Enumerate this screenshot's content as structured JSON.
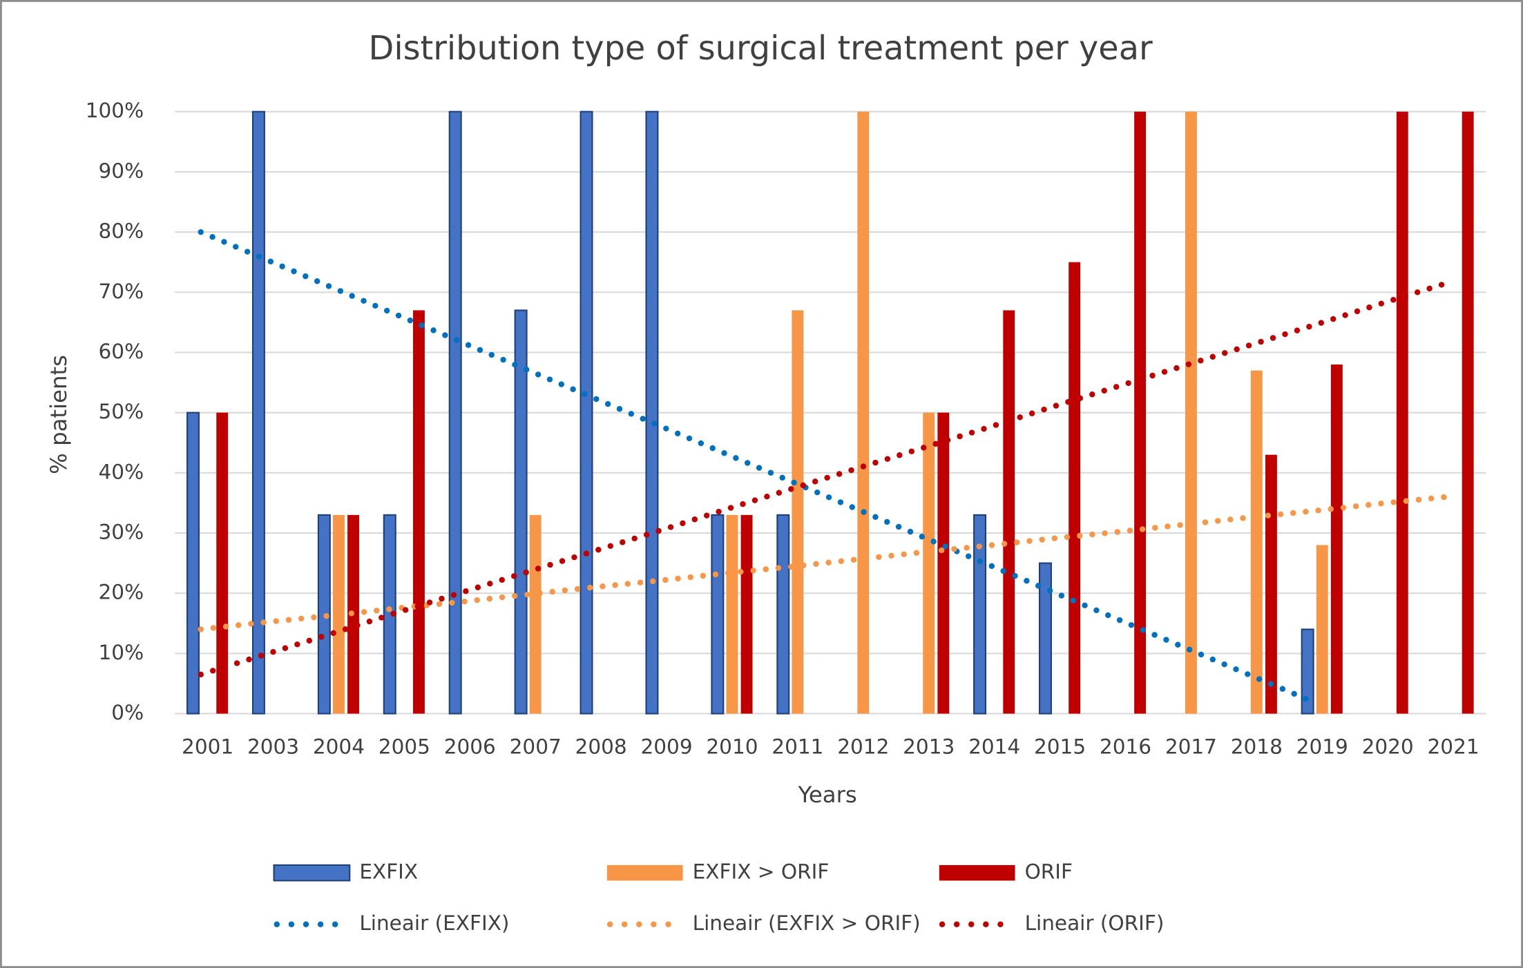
{
  "chart_data": {
    "type": "bar",
    "title": "Distribution type of surgical treatment  per year",
    "x_label": "Years",
    "y_label": "% patients",
    "categories": [
      "2001",
      "2003",
      "2004",
      "2005",
      "2006",
      "2007",
      "2008",
      "2009",
      "2010",
      "2011",
      "2012",
      "2013",
      "2014",
      "2015",
      "2016",
      "2017",
      "2018",
      "2019",
      "2020",
      "2021"
    ],
    "series": [
      {
        "name": "EXFIX",
        "color": "#4472c4",
        "values": [
          50,
          100,
          33,
          33,
          100,
          67,
          100,
          100,
          33,
          33,
          0,
          0,
          33,
          25,
          0,
          0,
          0,
          14,
          0,
          0
        ]
      },
      {
        "name": "EXFIX > ORIF",
        "color": "#f79646",
        "values": [
          0,
          0,
          33,
          0,
          0,
          33,
          0,
          0,
          33,
          67,
          100,
          50,
          0,
          0,
          0,
          100,
          57,
          28,
          0,
          0
        ]
      },
      {
        "name": "ORIF",
        "color": "#c00000",
        "values": [
          50,
          0,
          33,
          67,
          0,
          0,
          0,
          0,
          33,
          0,
          0,
          50,
          67,
          75,
          100,
          0,
          43,
          58,
          100,
          100
        ]
      }
    ],
    "trendlines": [
      {
        "name": "Lineair (EXFIX)",
        "color": "#0070c0",
        "values": [
          80,
          75.4,
          70.8,
          66.2,
          61.6,
          57,
          52.4,
          47.8,
          43.2,
          38.6,
          34,
          29.4,
          24.8,
          20.2,
          15.6,
          11,
          6.4,
          1.8,
          null,
          null
        ]
      },
      {
        "name": "Lineair (EXFIX > ORIF)",
        "color": "#f79646",
        "values": [
          14,
          15.2,
          16.3,
          17.5,
          18.6,
          19.8,
          21,
          22.1,
          23.3,
          24.4,
          25.6,
          26.8,
          27.9,
          29.1,
          30.2,
          31.4,
          32.6,
          33.7,
          34.9,
          36
        ]
      },
      {
        "name": "Lineair (ORIF)",
        "color": "#c00000",
        "values": [
          6.5,
          9.9,
          13.3,
          16.8,
          20.2,
          23.6,
          27,
          30.4,
          33.9,
          37.3,
          40.7,
          44.1,
          47.5,
          51,
          54.4,
          57.8,
          61.2,
          64.6,
          68.1,
          71.5
        ]
      }
    ],
    "ylim": [
      0,
      100
    ],
    "yticks": [
      {
        "value": 0,
        "label": "0%"
      },
      {
        "value": 10,
        "label": "10%"
      },
      {
        "value": 20,
        "label": "20%"
      },
      {
        "value": 30,
        "label": "30%"
      },
      {
        "value": 40,
        "label": "40%"
      },
      {
        "value": 50,
        "label": "50%"
      },
      {
        "value": 60,
        "label": "60%"
      },
      {
        "value": 70,
        "label": "70%"
      },
      {
        "value": 80,
        "label": "80%"
      },
      {
        "value": 90,
        "label": "90%"
      },
      {
        "value": 100,
        "label": "100%"
      }
    ],
    "grid": true,
    "legend": "bottom"
  }
}
